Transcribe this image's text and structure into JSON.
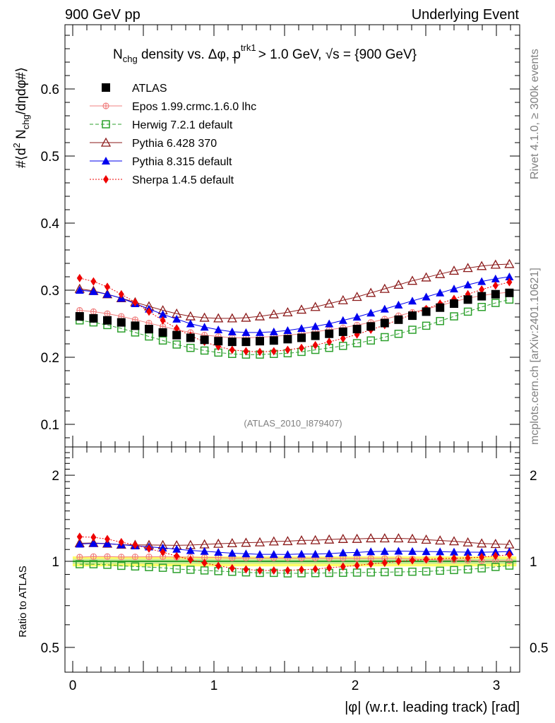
{
  "header": {
    "left": "900 GeV pp",
    "right": "Underlying Event"
  },
  "side_labels": {
    "rivet": "Rivet 4.1.0, ≥ 300k events",
    "mcplots": "mcplots.cern.ch [arXiv:2401.10621]"
  },
  "chart_data": [
    {
      "type": "scatter",
      "panel": "main",
      "title": "N_chg density vs. Δφ, p_T^trk1 > 1.0 GeV, √s = {900 GeV}",
      "title_parts": {
        "a": "N",
        "a_sub": "chg",
        "b": " density vs.",
        "c": "Δφ, p",
        "c_sup": "trk1",
        "c_sub": "T",
        "d": " > 1.0 GeV, ",
        "e": "√s",
        "f": " = {900 GeV}"
      },
      "ylabel": "#⟨d² N_chg/dηdφ#⟩",
      "ylabel_parts": {
        "a": "#⟨d",
        "a_sup": "2",
        "b": " N",
        "b_sub": "chg",
        "c": "/dηdφ#⟩"
      },
      "xlabel": "",
      "ylim": [
        0.05,
        0.73
      ],
      "xlim": [
        0,
        3.2
      ],
      "yticks": [
        0.1,
        0.2,
        0.3,
        0.4,
        0.5,
        0.6
      ],
      "ytick_labels": [
        "0.1",
        "0.2",
        "0.3",
        "0.4",
        "0.5",
        "0.6"
      ],
      "watermark": "(ATLAS_2010_I879407)",
      "legend_position": "top-left",
      "x": [
        0.049,
        0.147,
        0.245,
        0.344,
        0.442,
        0.54,
        0.638,
        0.736,
        0.834,
        0.933,
        1.031,
        1.129,
        1.227,
        1.325,
        1.424,
        1.522,
        1.62,
        1.718,
        1.816,
        1.914,
        2.013,
        2.111,
        2.209,
        2.307,
        2.405,
        2.503,
        2.601,
        2.7,
        2.798,
        2.896,
        2.994,
        3.092
      ],
      "series": [
        {
          "name": "ATLAS",
          "color": "#000000",
          "marker": "filled-square",
          "line": "none",
          "values": [
            0.261,
            0.258,
            0.255,
            0.252,
            0.247,
            0.242,
            0.237,
            0.233,
            0.229,
            0.226,
            0.224,
            0.223,
            0.223,
            0.224,
            0.225,
            0.227,
            0.229,
            0.232,
            0.235,
            0.238,
            0.242,
            0.246,
            0.251,
            0.256,
            0.262,
            0.268,
            0.274,
            0.28,
            0.286,
            0.291,
            0.294,
            0.296
          ]
        },
        {
          "name": "Epos 1.99.crmc.1.6.0 lhc",
          "color": "#f08080",
          "marker": "open-cross-circle",
          "line": "solid",
          "values": [
            0.27,
            0.268,
            0.265,
            0.261,
            0.256,
            0.251,
            0.246,
            0.241,
            0.237,
            0.233,
            0.231,
            0.229,
            0.229,
            0.23,
            0.231,
            0.233,
            0.235,
            0.238,
            0.241,
            0.244,
            0.248,
            0.252,
            0.257,
            0.262,
            0.267,
            0.272,
            0.277,
            0.283,
            0.288,
            0.292,
            0.295,
            0.297
          ]
        },
        {
          "name": "Herwig 7.2.1 default",
          "color": "#2ca02c",
          "marker": "open-square",
          "line": "dashed",
          "values": [
            0.255,
            0.252,
            0.248,
            0.243,
            0.237,
            0.231,
            0.225,
            0.219,
            0.214,
            0.21,
            0.207,
            0.205,
            0.204,
            0.204,
            0.205,
            0.206,
            0.208,
            0.211,
            0.214,
            0.217,
            0.221,
            0.225,
            0.23,
            0.235,
            0.241,
            0.247,
            0.254,
            0.261,
            0.268,
            0.275,
            0.281,
            0.286
          ]
        },
        {
          "name": "Pythia 6.428 370",
          "color": "#8b1a1a",
          "marker": "open-triangle",
          "line": "solid",
          "values": [
            0.302,
            0.299,
            0.294,
            0.288,
            0.282,
            0.276,
            0.27,
            0.265,
            0.261,
            0.259,
            0.258,
            0.258,
            0.259,
            0.261,
            0.264,
            0.267,
            0.271,
            0.275,
            0.28,
            0.285,
            0.29,
            0.296,
            0.302,
            0.308,
            0.314,
            0.319,
            0.324,
            0.329,
            0.333,
            0.336,
            0.338,
            0.339
          ]
        },
        {
          "name": "Pythia 8.315 default",
          "color": "#0000ee",
          "marker": "filled-triangle",
          "line": "solid",
          "values": [
            0.3,
            0.298,
            0.294,
            0.288,
            0.28,
            0.272,
            0.264,
            0.257,
            0.25,
            0.245,
            0.241,
            0.238,
            0.237,
            0.237,
            0.238,
            0.24,
            0.243,
            0.246,
            0.25,
            0.255,
            0.26,
            0.266,
            0.272,
            0.278,
            0.284,
            0.29,
            0.296,
            0.302,
            0.308,
            0.313,
            0.317,
            0.32
          ]
        },
        {
          "name": "Sherpa 1.4.5 default",
          "color": "#ee0000",
          "marker": "filled-diamond",
          "line": "dotted",
          "values": [
            0.318,
            0.313,
            0.305,
            0.294,
            0.282,
            0.268,
            0.255,
            0.243,
            0.232,
            0.223,
            0.216,
            0.211,
            0.209,
            0.208,
            0.209,
            0.211,
            0.214,
            0.218,
            0.223,
            0.228,
            0.234,
            0.241,
            0.248,
            0.256,
            0.264,
            0.272,
            0.28,
            0.287,
            0.294,
            0.301,
            0.307,
            0.312
          ]
        }
      ]
    },
    {
      "type": "scatter",
      "panel": "ratio",
      "ylabel": "Ratio to ATLAS",
      "xlabel": "|φ| (w.r.t. leading track) [rad]",
      "yscale": "log",
      "ylim": [
        0.4,
        2.8
      ],
      "xlim": [
        0,
        3.2
      ],
      "yticks": [
        0.5,
        1,
        2
      ],
      "ytick_labels": [
        "0.5",
        "1",
        "2"
      ],
      "xticks": [
        0,
        1,
        2,
        3
      ],
      "xtick_labels": [
        "0",
        "1",
        "2",
        "3"
      ],
      "band": {
        "color": "#ffff66",
        "inner_color": "#c8e89a",
        "range": [
          0.96,
          1.04
        ]
      },
      "reference_line": {
        "value": 1,
        "color": "#2ca02c"
      }
    }
  ]
}
